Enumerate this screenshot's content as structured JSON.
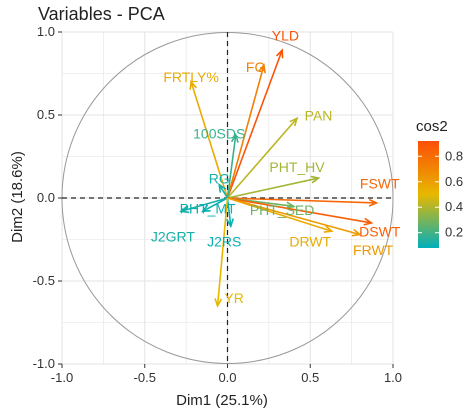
{
  "chart_data": {
    "type": "scatter",
    "title": "Variables - PCA",
    "xlabel": "Dim1 (25.1%)",
    "ylabel": "Dim2 (18.6%)",
    "xlim": [
      -1.0,
      1.0
    ],
    "ylim": [
      -1.0,
      1.0
    ],
    "xticks": [
      "-1.0",
      "-0.5",
      "0.0",
      "0.5",
      "1.0"
    ],
    "yticks": [
      "-1.0",
      "-0.5",
      "0.0",
      "0.5",
      "1.0"
    ],
    "grid": true,
    "unit_circle": true,
    "legend": {
      "title": "cos2",
      "placement": "right",
      "ticks": [
        "0.8",
        "0.6",
        "0.4",
        "0.2"
      ],
      "tick_values": [
        0.8,
        0.6,
        0.4,
        0.2
      ],
      "range": [
        0.08,
        0.92
      ],
      "colors": [
        "#00AFBB",
        "#E7B800",
        "#FC4E07"
      ]
    },
    "variables": [
      {
        "label": "YLD",
        "x": 0.33,
        "y": 0.89,
        "cos2": 0.9,
        "lx": 0.35,
        "ly": 0.97
      },
      {
        "label": "FG",
        "x": 0.22,
        "y": 0.8,
        "cos2": 0.72,
        "lx": 0.17,
        "ly": 0.78
      },
      {
        "label": "FRTLY%",
        "x": -0.22,
        "y": 0.7,
        "cos2": 0.55,
        "lx": -0.22,
        "ly": 0.72
      },
      {
        "label": "PAN",
        "x": 0.42,
        "y": 0.48,
        "cos2": 0.42,
        "lx": 0.55,
        "ly": 0.49
      },
      {
        "label": "100SDS",
        "x": 0.05,
        "y": 0.38,
        "cos2": 0.18,
        "lx": -0.05,
        "ly": 0.38
      },
      {
        "label": "PHT_HV",
        "x": 0.55,
        "y": 0.12,
        "cos2": 0.38,
        "lx": 0.42,
        "ly": 0.18
      },
      {
        "label": "FSWT",
        "x": 0.9,
        "y": -0.03,
        "cos2": 0.82,
        "lx": 0.92,
        "ly": 0.08
      },
      {
        "label": "RG",
        "x": -0.05,
        "y": 0.08,
        "cos2": 0.12,
        "lx": -0.05,
        "ly": 0.11
      },
      {
        "label": "PHT_MT",
        "x": -0.15,
        "y": -0.08,
        "cos2": 0.1,
        "lx": -0.12,
        "ly": -0.07
      },
      {
        "label": "PHT_SED",
        "x": 0.4,
        "y": -0.05,
        "cos2": 0.28,
        "lx": 0.33,
        "ly": -0.08
      },
      {
        "label": "J2GRT",
        "x": -0.28,
        "y": -0.08,
        "cos2": 0.12,
        "lx": -0.33,
        "ly": -0.24
      },
      {
        "label": "J2RS",
        "x": 0.02,
        "y": -0.17,
        "cos2": 0.1,
        "lx": -0.02,
        "ly": -0.27
      },
      {
        "label": "DRWT",
        "x": 0.63,
        "y": -0.2,
        "cos2": 0.55,
        "lx": 0.5,
        "ly": -0.27
      },
      {
        "label": "DSWT",
        "x": 0.87,
        "y": -0.15,
        "cos2": 0.85,
        "lx": 0.92,
        "ly": -0.21
      },
      {
        "label": "FRWT",
        "x": 0.8,
        "y": -0.22,
        "cos2": 0.62,
        "lx": 0.88,
        "ly": -0.32
      },
      {
        "label": "YR",
        "x": -0.06,
        "y": -0.65,
        "cos2": 0.5,
        "lx": 0.04,
        "ly": -0.61
      }
    ]
  }
}
